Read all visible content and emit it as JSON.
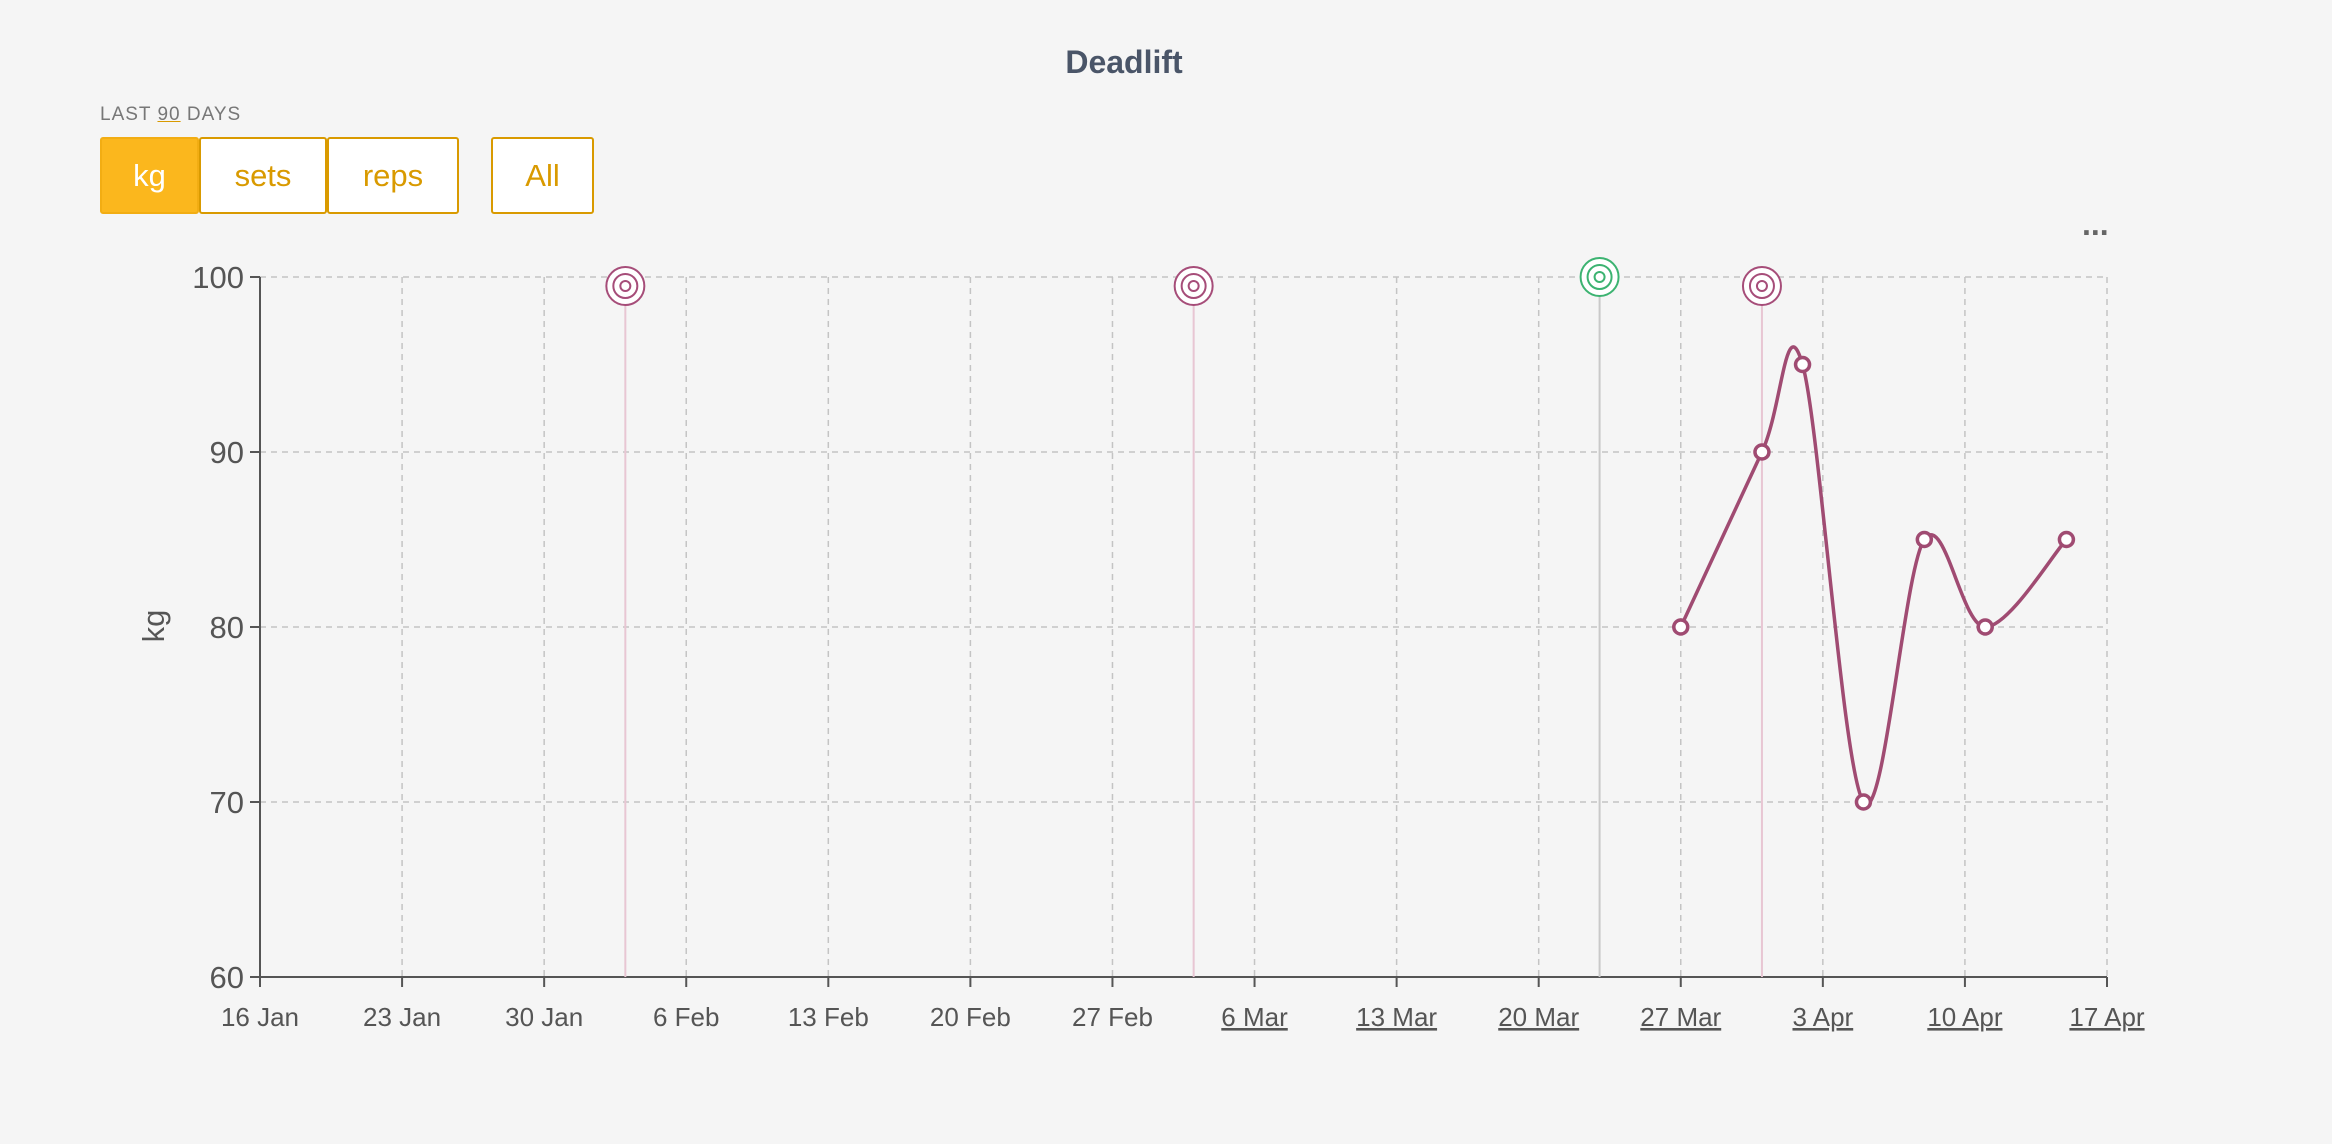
{
  "header": {
    "title": "Deadlift"
  },
  "range_label": {
    "prefix": "LAST",
    "days": 90,
    "suffix": "DAYS"
  },
  "buttons": [
    {
      "label": "kg",
      "active": true
    },
    {
      "label": "sets",
      "active": false
    },
    {
      "label": "reps",
      "active": false
    },
    {
      "label": "All",
      "active": false
    }
  ],
  "menu": "...",
  "chart_data": {
    "type": "line",
    "y_label": "kg",
    "x": [
      "--03-27",
      "--03-31",
      "--04-02",
      "--04-05",
      "--04-08",
      "--04-11",
      "--04-15"
    ],
    "series": [
      {
        "name": "Deadlift",
        "color": "#a04b72",
        "values": [
          80,
          90,
          95,
          70,
          85,
          80,
          85
        ]
      }
    ],
    "xlim": [
      "--01-16",
      "--04-17"
    ],
    "xticks": [
      {
        "value": "--01-16",
        "label": "16 Jan"
      },
      {
        "value": "--01-23",
        "label": "23 Jan"
      },
      {
        "value": "--01-30",
        "label": "30 Jan"
      },
      {
        "value": "--02-06",
        "label": "6 Feb"
      },
      {
        "value": "--02-13",
        "label": "13 Feb"
      },
      {
        "value": "--02-20",
        "label": "20 Feb"
      },
      {
        "value": "--02-27",
        "label": "27 Feb"
      },
      {
        "value": "--03-06",
        "label": "6 Mar"
      },
      {
        "value": "--03-13",
        "label": "13 Mar"
      },
      {
        "value": "--03-20",
        "label": "20 Mar"
      },
      {
        "value": "--03-27",
        "label": "27 Mar"
      },
      {
        "value": "--04-03",
        "label": "3 Apr"
      },
      {
        "value": "--04-10",
        "label": "10 Apr"
      },
      {
        "value": "--04-17",
        "label": "17 Apr"
      }
    ],
    "linked_xticks_from": 7,
    "ylim": [
      60,
      100
    ],
    "yticks": [
      60,
      70,
      80,
      90,
      100
    ],
    "grid": true,
    "markers": [
      {
        "x": "--02-03",
        "color": "#a64d79"
      },
      {
        "x": "--03-03",
        "color": "#a64d79"
      },
      {
        "x": "--03-23",
        "color": "#3cb371"
      },
      {
        "x": "--03-31",
        "color": "#a64d79"
      }
    ]
  }
}
